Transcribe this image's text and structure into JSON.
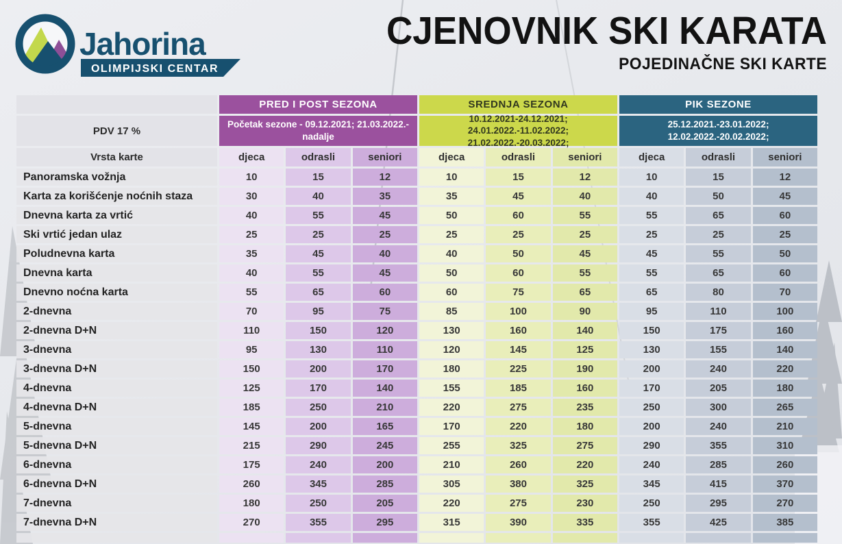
{
  "logo": {
    "brand": "Jahorina",
    "tagline": "OLIMPIJSKI CENTAR",
    "colors": {
      "blue": "#17506f",
      "lime": "#c3d84c",
      "purple": "#8e4f97"
    }
  },
  "header": {
    "title": "CJENOVNIK SKI KARATA",
    "subtitle": "POJEDINAČNE SKI KARTE"
  },
  "table": {
    "vat_label": "PDV 17 %",
    "type_label": "Vrsta karte",
    "age_groups": [
      "djeca",
      "odrasli",
      "seniori"
    ],
    "seasons": [
      {
        "name": "PRED I POST SEZONA",
        "dates": "Početak sezone - 09.12.2021; 21.03.2022.-nadalje",
        "header_color": "#9b519e",
        "header_text_color": "#ffffff",
        "cell_colors": [
          "#ece2f2",
          "#ddc8e9",
          "#cdaddc"
        ]
      },
      {
        "name": "SREDNJA SEZONA",
        "dates": "10.12.2021-24.12.2021; 24.01.2022.-11.02.2022; 21.02.2022.-20.03.2022;",
        "header_color": "#ccd84b",
        "header_text_color": "#31371f",
        "cell_colors": [
          "#f2f4d8",
          "#e9eeba",
          "#e2e9ab"
        ]
      },
      {
        "name": "PIK SEZONE",
        "dates": "25.12.2021.-23.01.2022; 12.02.2022.-20.02.2022;",
        "header_color": "#2b6480",
        "header_text_color": "#ffffff",
        "cell_colors": [
          "#d9dee6",
          "#c6cdd9",
          "#b4bfcd"
        ]
      }
    ],
    "rows": [
      {
        "label": "Panoramska vožnja",
        "values": [
          10,
          15,
          12,
          10,
          15,
          12,
          10,
          15,
          12
        ]
      },
      {
        "label": "Karta za korišćenje noćnih staza",
        "values": [
          30,
          40,
          35,
          35,
          45,
          40,
          40,
          50,
          45
        ]
      },
      {
        "label": "Dnevna karta za vrtić",
        "values": [
          40,
          55,
          45,
          50,
          60,
          55,
          55,
          65,
          60
        ]
      },
      {
        "label": "Ski vrtić jedan ulaz",
        "values": [
          25,
          25,
          25,
          25,
          25,
          25,
          25,
          25,
          25
        ]
      },
      {
        "label": "Poludnevna karta",
        "values": [
          35,
          45,
          40,
          40,
          50,
          45,
          45,
          55,
          50
        ]
      },
      {
        "label": "Dnevna karta",
        "values": [
          40,
          55,
          45,
          50,
          60,
          55,
          55,
          65,
          60
        ]
      },
      {
        "label": "Dnevno noćna karta",
        "values": [
          55,
          65,
          60,
          60,
          75,
          65,
          65,
          80,
          70
        ]
      },
      {
        "label": "2-dnevna",
        "values": [
          70,
          95,
          75,
          85,
          100,
          90,
          95,
          110,
          100
        ]
      },
      {
        "label": "2-dnevna D+N",
        "values": [
          110,
          150,
          120,
          130,
          160,
          140,
          150,
          175,
          160
        ]
      },
      {
        "label": "3-dnevna",
        "values": [
          95,
          130,
          110,
          120,
          145,
          125,
          130,
          155,
          140
        ]
      },
      {
        "label": "3-dnevna D+N",
        "values": [
          150,
          200,
          170,
          180,
          225,
          190,
          200,
          240,
          220
        ]
      },
      {
        "label": "4-dnevna",
        "values": [
          125,
          170,
          140,
          155,
          185,
          160,
          170,
          205,
          180
        ]
      },
      {
        "label": "4-dnevna D+N",
        "values": [
          185,
          250,
          210,
          220,
          275,
          235,
          250,
          300,
          265
        ]
      },
      {
        "label": "5-dnevna",
        "values": [
          145,
          200,
          165,
          170,
          220,
          180,
          200,
          240,
          210
        ]
      },
      {
        "label": "5-dnevna D+N",
        "values": [
          215,
          290,
          245,
          255,
          325,
          275,
          290,
          355,
          310
        ]
      },
      {
        "label": "6-dnevna",
        "values": [
          175,
          240,
          200,
          210,
          260,
          220,
          240,
          285,
          260
        ]
      },
      {
        "label": "6-dnevna D+N",
        "values": [
          260,
          345,
          285,
          305,
          380,
          325,
          345,
          415,
          370
        ]
      },
      {
        "label": "7-dnevna",
        "values": [
          180,
          250,
          205,
          220,
          275,
          230,
          250,
          295,
          270
        ]
      },
      {
        "label": "7-dnevna D+N",
        "values": [
          270,
          355,
          295,
          315,
          390,
          335,
          355,
          425,
          385
        ]
      }
    ]
  }
}
